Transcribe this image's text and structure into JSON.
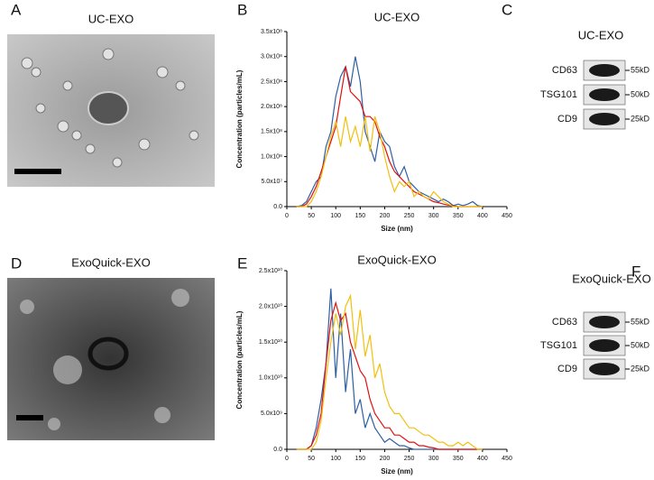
{
  "micrographs": [
    {
      "letter": "A",
      "title": "UC-EXO"
    },
    {
      "letter": "D",
      "title": "ExoQuick-EXO"
    }
  ],
  "chart_data": [
    {
      "type": "line",
      "panel_label": "B",
      "title": "UC-EXO",
      "x_label": "Size (nm)",
      "y_label": "Concentration (particles/mL)",
      "x": [
        20,
        30,
        40,
        50,
        60,
        70,
        80,
        90,
        100,
        110,
        120,
        130,
        140,
        150,
        160,
        170,
        180,
        190,
        200,
        210,
        220,
        230,
        240,
        250,
        260,
        270,
        280,
        290,
        300,
        310,
        320,
        330,
        340,
        350,
        360,
        370,
        380,
        390,
        400
      ],
      "series": [
        {
          "color": "#2e5fa3",
          "values": [
            0,
            2000000.0,
            10000000.0,
            30000000.0,
            50000000.0,
            60000000.0,
            120000000.0,
            150000000.0,
            220000000.0,
            260000000.0,
            280000000.0,
            240000000.0,
            300000000.0,
            250000000.0,
            150000000.0,
            120000000.0,
            90000000.0,
            150000000.0,
            130000000.0,
            120000000.0,
            80000000.0,
            60000000.0,
            80000000.0,
            50000000.0,
            40000000.0,
            30000000.0,
            25000000.0,
            20000000.0,
            15000000.0,
            10000000.0,
            15000000.0,
            10000000.0,
            2000000.0,
            5000000.0,
            2000000.0,
            5000000.0,
            10000000.0,
            2000000.0,
            0
          ]
        },
        {
          "color": "#e01010",
          "values": [
            0,
            0,
            5000000.0,
            20000000.0,
            40000000.0,
            70000000.0,
            100000000.0,
            130000000.0,
            160000000.0,
            220000000.0,
            280000000.0,
            230000000.0,
            220000000.0,
            210000000.0,
            180000000.0,
            180000000.0,
            170000000.0,
            140000000.0,
            120000000.0,
            90000000.0,
            70000000.0,
            60000000.0,
            50000000.0,
            40000000.0,
            30000000.0,
            25000000.0,
            20000000.0,
            15000000.0,
            10000000.0,
            8000000.0,
            5000000.0,
            3000000.0,
            2000000.0,
            0,
            0,
            0,
            0,
            0,
            0
          ]
        },
        {
          "color": "#f0c010",
          "values": [
            0,
            0,
            0,
            10000000.0,
            30000000.0,
            60000000.0,
            100000000.0,
            140000000.0,
            170000000.0,
            120000000.0,
            180000000.0,
            130000000.0,
            160000000.0,
            120000000.0,
            180000000.0,
            110000000.0,
            180000000.0,
            150000000.0,
            100000000.0,
            60000000.0,
            30000000.0,
            50000000.0,
            40000000.0,
            50000000.0,
            20000000.0,
            30000000.0,
            20000000.0,
            15000000.0,
            30000000.0,
            20000000.0,
            10000000.0,
            5000000.0,
            0,
            0,
            0,
            0,
            0,
            0,
            0
          ]
        }
      ],
      "xlim": [
        0,
        450
      ],
      "xticks": [
        0,
        50,
        100,
        150,
        200,
        250,
        300,
        350,
        400,
        450
      ],
      "ylim": [
        0,
        350000000.0
      ],
      "yticks": [
        {
          "value": 0,
          "label": "0.0"
        },
        {
          "value": 50000000.0,
          "label": "5.0x10⁷"
        },
        {
          "value": 100000000.0,
          "label": "1.0x10⁸"
        },
        {
          "value": 150000000.0,
          "label": "1.5x10⁸"
        },
        {
          "value": 200000000.0,
          "label": "2.0x10⁸"
        },
        {
          "value": 250000000.0,
          "label": "2.5x10⁸"
        },
        {
          "value": 300000000.0,
          "label": "3.0x10⁸"
        },
        {
          "value": 350000000.0,
          "label": "3.5x10⁸"
        }
      ]
    },
    {
      "type": "line",
      "panel_label": "E",
      "title": "ExoQuick-EXO",
      "x_label": "Size (nm)",
      "y_label": "Concentration (particles/mL)",
      "x": [
        20,
        30,
        40,
        50,
        60,
        70,
        80,
        90,
        100,
        110,
        120,
        130,
        140,
        150,
        160,
        170,
        180,
        190,
        200,
        210,
        220,
        230,
        240,
        250,
        260,
        270,
        280,
        290,
        300,
        310,
        320,
        330,
        340,
        350,
        360,
        370,
        380,
        390,
        400
      ],
      "series": [
        {
          "color": "#2e5fa3",
          "values": [
            0,
            0,
            0,
            500000000.0,
            3000000000.0,
            7000000000.0,
            12000000000.0,
            22500000000.0,
            10000000000.0,
            19000000000.0,
            8000000000.0,
            14000000000.0,
            5000000000.0,
            7000000000.0,
            3000000000.0,
            5000000000.0,
            3000000000.0,
            2000000000.0,
            1000000000.0,
            1500000000.0,
            1000000000.0,
            500000000.0,
            500000000.0,
            200000000.0,
            0,
            0,
            0,
            0,
            0,
            0,
            0,
            0,
            0,
            0,
            0,
            0,
            0,
            0,
            0
          ]
        },
        {
          "color": "#e01010",
          "values": [
            0,
            0,
            0,
            500000000.0,
            2000000000.0,
            5000000000.0,
            12000000000.0,
            18000000000.0,
            20500000000.0,
            18000000000.0,
            19000000000.0,
            15000000000.0,
            13000000000.0,
            11000000000.0,
            10000000000.0,
            7000000000.0,
            5000000000.0,
            4000000000.0,
            3000000000.0,
            3000000000.0,
            2000000000.0,
            2000000000.0,
            1500000000.0,
            1000000000.0,
            1000000000.0,
            500000000.0,
            500000000.0,
            300000000.0,
            200000000.0,
            0,
            0,
            0,
            0,
            0,
            0,
            0,
            0,
            0,
            0
          ]
        },
        {
          "color": "#f0c010",
          "values": [
            0,
            0,
            0,
            0,
            1000000000.0,
            4000000000.0,
            10000000000.0,
            15000000000.0,
            19000000000.0,
            16000000000.0,
            20000000000.0,
            21500000000.0,
            14000000000.0,
            19500000000.0,
            13000000000.0,
            16000000000.0,
            10000000000.0,
            12000000000.0,
            8000000000.0,
            6000000000.0,
            5000000000.0,
            5000000000.0,
            4000000000.0,
            3000000000.0,
            3000000000.0,
            2500000000.0,
            2000000000.0,
            2000000000.0,
            1500000000.0,
            1000000000.0,
            1000000000.0,
            500000000.0,
            500000000.0,
            1000000000.0,
            500000000.0,
            1000000000.0,
            500000000.0,
            0,
            0
          ]
        }
      ],
      "xlim": [
        0,
        450
      ],
      "xticks": [
        0,
        50,
        100,
        150,
        200,
        250,
        300,
        350,
        400,
        450
      ],
      "ylim": [
        0,
        25000000000.0
      ],
      "yticks": [
        {
          "value": 0,
          "label": "0.0"
        },
        {
          "value": 5000000000.0,
          "label": "5.0x10⁹"
        },
        {
          "value": 10000000000.0,
          "label": "1.0x10¹⁰"
        },
        {
          "value": 15000000000.0,
          "label": "1.5x10¹⁰"
        },
        {
          "value": 20000000000.0,
          "label": "2.0x10¹⁰"
        },
        {
          "value": 25000000000.0,
          "label": "2.5x10¹⁰"
        }
      ]
    }
  ],
  "blots": [
    {
      "letter": "C",
      "title": "UC-EXO",
      "bands": [
        {
          "protein": "CD63",
          "size": "55kD"
        },
        {
          "protein": "TSG101",
          "size": "50kD"
        },
        {
          "protein": "CD9",
          "size": "25kD"
        }
      ]
    },
    {
      "letter": "F",
      "title": "ExoQuick-EXO",
      "bands": [
        {
          "protein": "CD63",
          "size": "55kD"
        },
        {
          "protein": "TSG101",
          "size": "50kD"
        },
        {
          "protein": "CD9",
          "size": "25kD"
        }
      ]
    }
  ]
}
